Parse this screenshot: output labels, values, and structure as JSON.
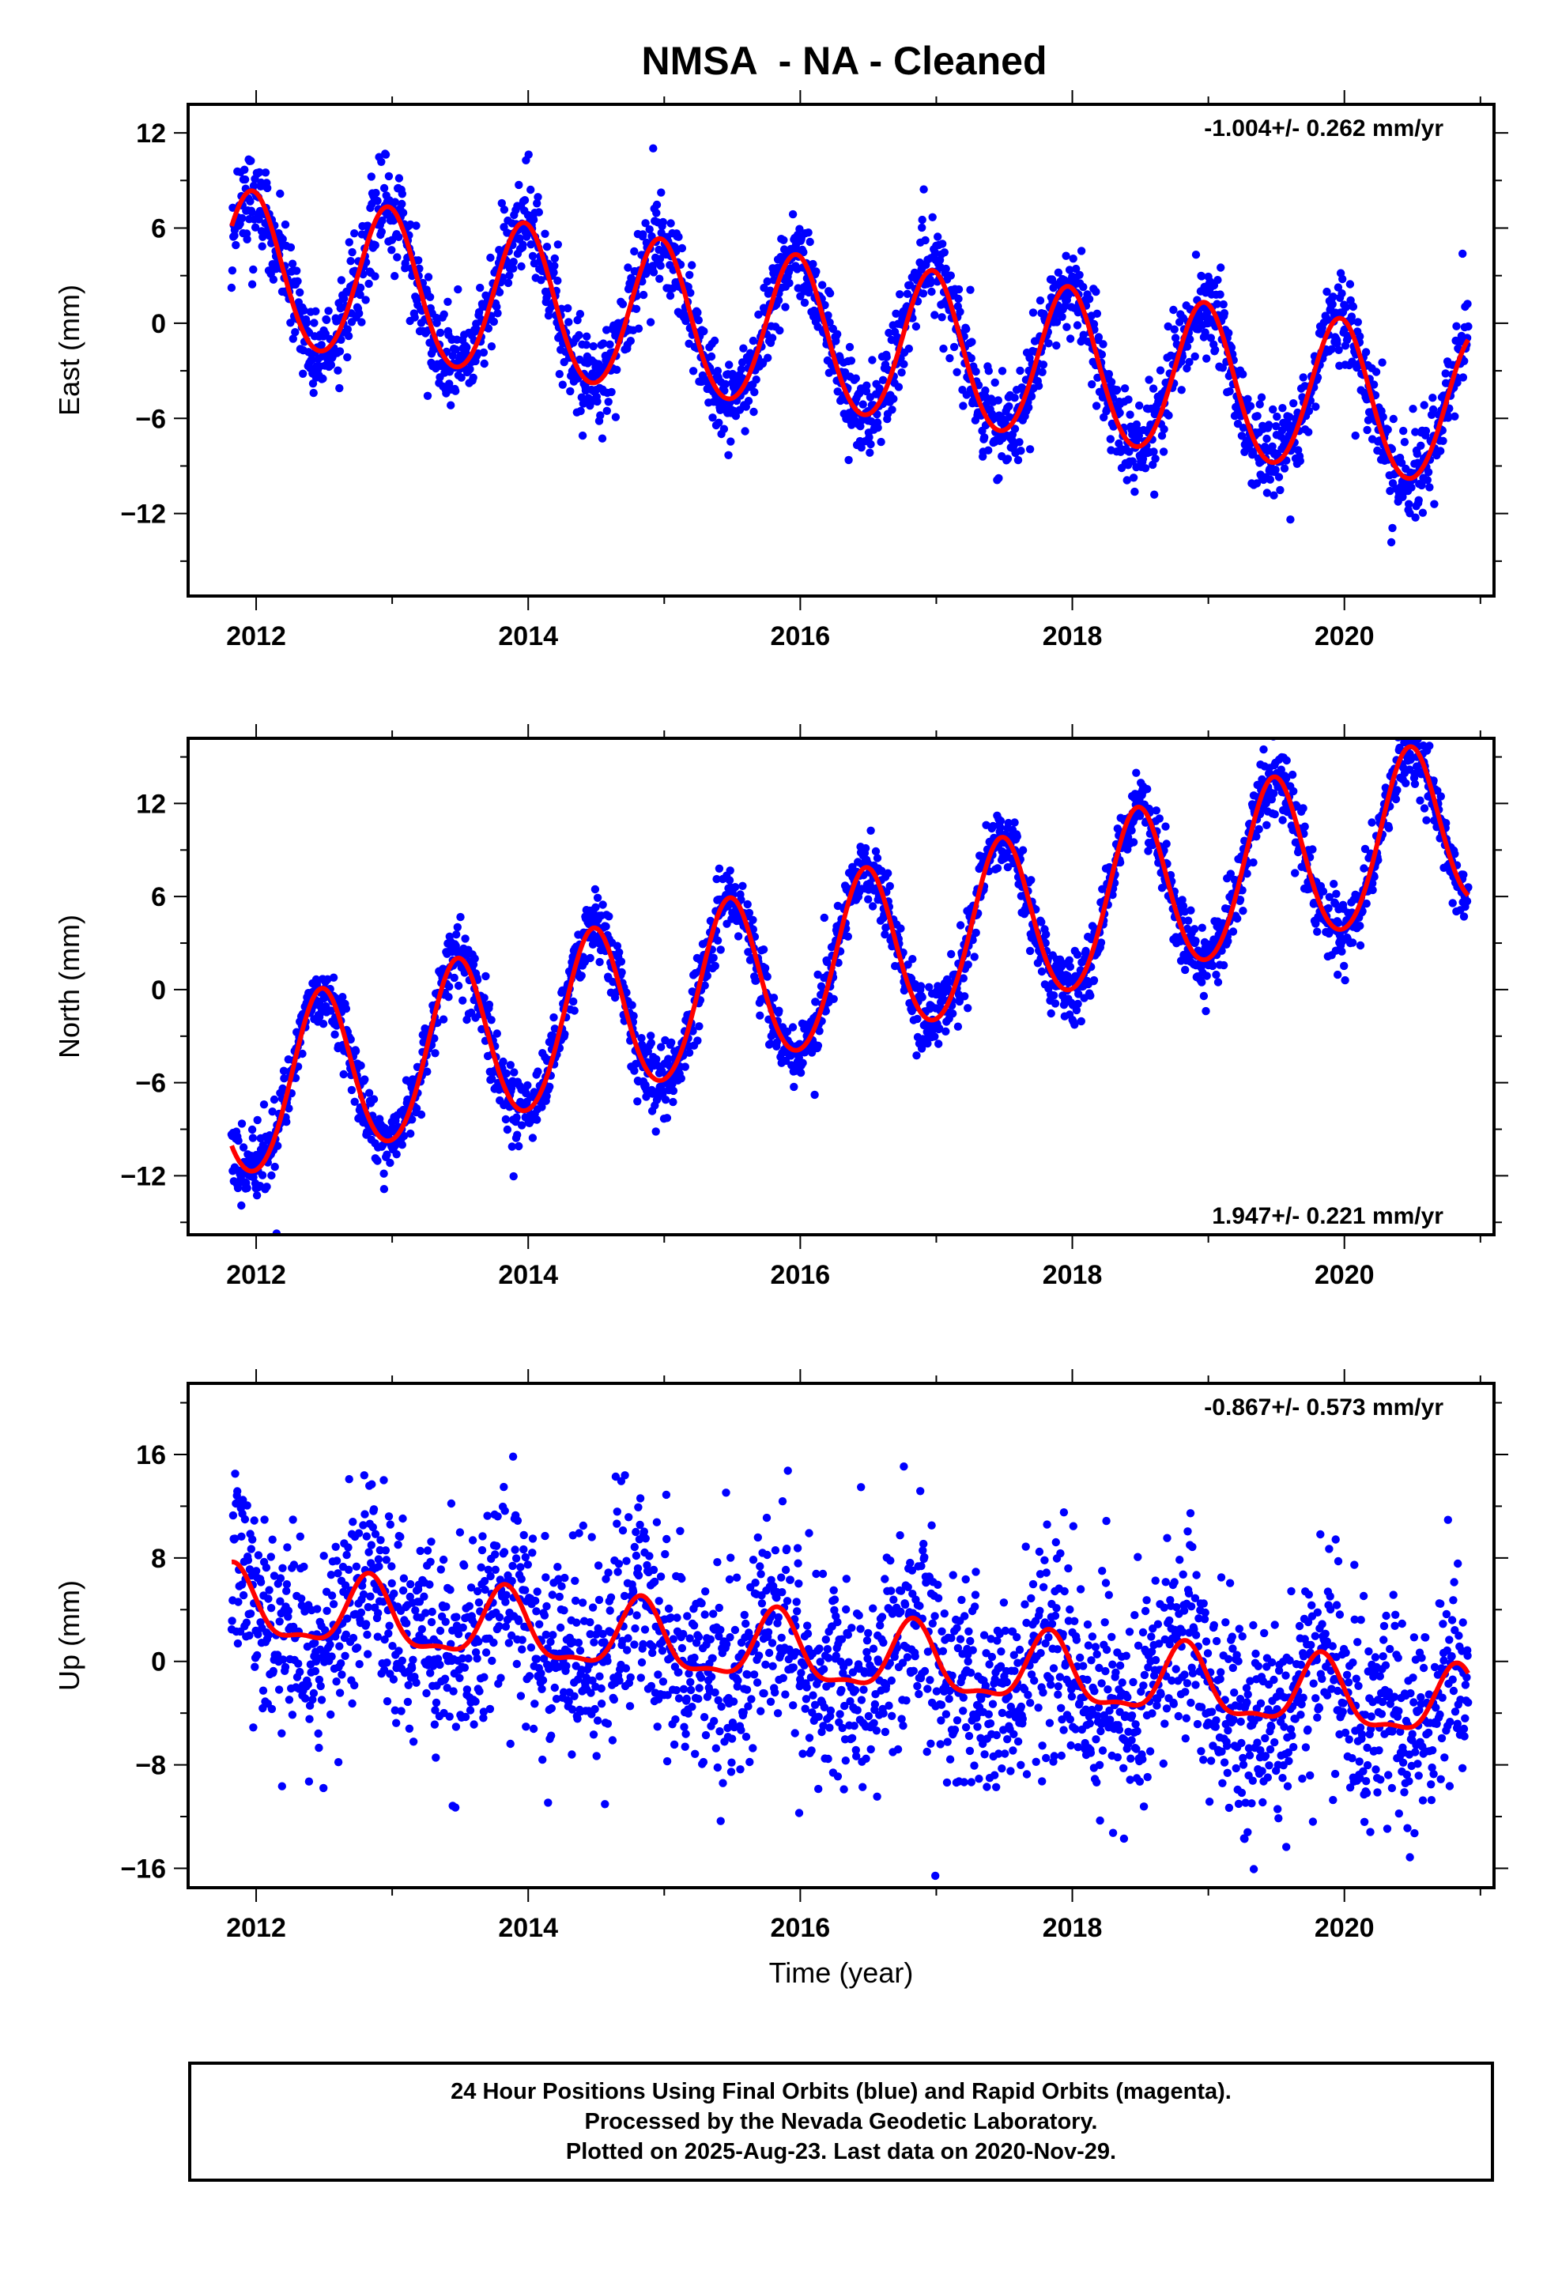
{
  "title": "NMSA  - NA - Cleaned",
  "footer": {
    "line1": "24 Hour Positions Using Final Orbits (blue) and Rapid Orbits (magenta).",
    "line2": "Processed by the Nevada Geodetic Laboratory.",
    "line3": "Plotted on 2025-Aug-23. Last data on 2020-Nov-29."
  },
  "colors": {
    "points": "#0000ff",
    "fit": "#ff0000",
    "frame": "#000000"
  },
  "chart_data": [
    {
      "type": "scatter",
      "ylabel": "East (mm)",
      "xlabel": "",
      "rate_text": "-1.004+/- 0.262 mm/yr",
      "rate_position": "top-right",
      "xlim": [
        2011.5,
        2021.1
      ],
      "ylim": [
        -17.2,
        13.8
      ],
      "x_ticks": [
        2012,
        2014,
        2016,
        2018,
        2020
      ],
      "y_ticks": [
        12,
        6,
        0,
        -6,
        -12
      ],
      "grid": false,
      "series": [
        {
          "kind": "points",
          "start": 2011.82,
          "end": 2020.91,
          "trend_mm_per_yr": -1.004,
          "offset": 3.4,
          "annual_amp": 4.8,
          "annual_phase_year": 2011.97,
          "semiannual_amp": 0.3,
          "scatter_mm": 1.4
        },
        {
          "kind": "fit",
          "start": 2011.82,
          "end": 2020.91,
          "trend_mm_per_yr": -1.004,
          "offset": 3.4,
          "annual_amp": 4.8,
          "annual_phase_year": 2011.97,
          "semiannual_amp": 0.3
        }
      ]
    },
    {
      "type": "scatter",
      "ylabel": "North (mm)",
      "xlabel": "",
      "rate_text": "1.947+/- 0.221 mm/yr",
      "rate_position": "bottom-right",
      "xlim": [
        2011.5,
        2021.1
      ],
      "ylim": [
        -15.8,
        16.2
      ],
      "x_ticks": [
        2012,
        2014,
        2016,
        2018,
        2020
      ],
      "y_ticks": [
        12,
        6,
        0,
        -6,
        -12
      ],
      "grid": false,
      "series": [
        {
          "kind": "points",
          "start": 2011.82,
          "end": 2020.91,
          "trend_mm_per_yr": 1.947,
          "offset": -7.0,
          "annual_amp": 5.4,
          "annual_phase_year": 2012.48,
          "semiannual_amp": 0.4,
          "scatter_mm": 1.1
        },
        {
          "kind": "fit",
          "start": 2011.82,
          "end": 2020.91,
          "trend_mm_per_yr": 1.947,
          "offset": -7.0,
          "annual_amp": 5.4,
          "annual_phase_year": 2012.48,
          "semiannual_amp": 0.4
        }
      ]
    },
    {
      "type": "scatter",
      "ylabel": "Up (mm)",
      "xlabel": "Time (year)",
      "rate_text": "-0.867+/- 0.573 mm/yr",
      "rate_position": "top-right",
      "xlim": [
        2011.5,
        2021.1
      ],
      "ylim": [
        -17.5,
        21.5
      ],
      "x_ticks": [
        2012,
        2014,
        2016,
        2018,
        2020
      ],
      "y_ticks": [
        16,
        8,
        0,
        -8,
        -16
      ],
      "grid": false,
      "series": [
        {
          "kind": "points",
          "start": 2011.82,
          "end": 2020.91,
          "trend_mm_per_yr": -0.867,
          "offset": 4.2,
          "annual_amp": 2.6,
          "annual_phase_year": 2011.83,
          "semiannual_amp": 0.9,
          "scatter_mm": 4.0
        },
        {
          "kind": "fit",
          "start": 2011.82,
          "end": 2020.91,
          "trend_mm_per_yr": -0.867,
          "offset": 4.2,
          "annual_amp": 2.6,
          "annual_phase_year": 2011.83,
          "semiannual_amp": 0.9
        }
      ]
    }
  ]
}
